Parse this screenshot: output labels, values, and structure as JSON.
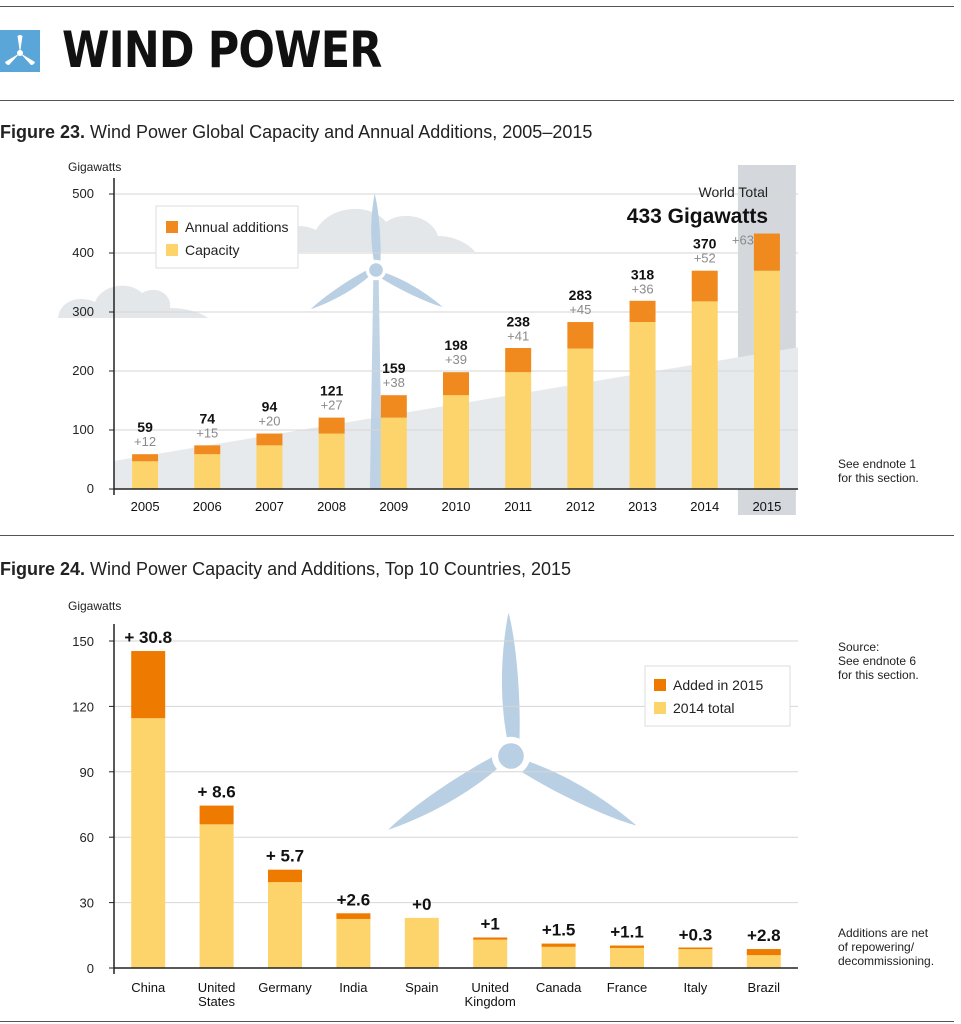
{
  "page_title": "WIND POWER",
  "colors": {
    "capacity": "#fdd36b",
    "addition": "#f08a1e",
    "addition_dark": "#ee7b00",
    "turbine": "#b9cfe3",
    "cloud": "#e3e7ea",
    "axis": "#222222",
    "grid": "#d6d6d6"
  },
  "icons": {
    "header": "wind-turbine-icon"
  },
  "fig23": {
    "title_bold": "Figure 23.",
    "title_rest": " Wind Power Global Capacity and Annual Additions, 2005–2015",
    "unit": "Gigawatts",
    "legend": [
      "Annual additions",
      "Capacity"
    ],
    "world_total_label": "World Total",
    "world_total_value": "433 Gigawatts",
    "note": "See endnote 1\nfor this section."
  },
  "fig24": {
    "title_bold": "Figure 24.",
    "title_rest": " Wind Power Capacity and Additions, Top 10 Countries, 2015",
    "unit": "Gigawatts",
    "legend": [
      "Added in 2015",
      "2014 total"
    ],
    "note_source": "Source:\nSee endnote 6\nfor this section.",
    "note_net": "Additions are net\nof repowering/\ndecommissioning."
  },
  "chart_data": [
    {
      "type": "bar",
      "stacked": true,
      "categories": [
        "2005",
        "2006",
        "2007",
        "2008",
        "2009",
        "2010",
        "2011",
        "2012",
        "2013",
        "2014",
        "2015"
      ],
      "series": [
        {
          "name": "Capacity",
          "values": [
            47,
            59,
            74,
            94,
            121,
            159,
            198,
            238,
            283,
            318,
            370
          ]
        },
        {
          "name": "Annual additions",
          "values": [
            12,
            15,
            20,
            27,
            38,
            39,
            41,
            45,
            36,
            52,
            63
          ]
        }
      ],
      "totals": [
        59,
        74,
        94,
        121,
        159,
        198,
        238,
        283,
        318,
        370,
        433
      ],
      "total_labels": [
        "59",
        "74",
        "94",
        "121",
        "159",
        "198",
        "238",
        "283",
        "318",
        "370",
        ""
      ],
      "addition_labels": [
        "+12",
        "+15",
        "+20",
        "+27",
        "+38",
        "+39",
        "+41",
        "+45",
        "+36",
        "+52",
        "+63"
      ],
      "ylim": [
        0,
        500
      ],
      "yticks": [
        0,
        100,
        200,
        300,
        400,
        500
      ],
      "ylabel": "Gigawatts",
      "grid": true,
      "highlight_category": "2015",
      "legend_position": "top-left"
    },
    {
      "type": "bar",
      "stacked": true,
      "categories": [
        "China",
        "United States",
        "Germany",
        "India",
        "Spain",
        "United Kingdom",
        "Canada",
        "France",
        "Italy",
        "Brazil"
      ],
      "category_lines": [
        [
          "China"
        ],
        [
          "United",
          "States"
        ],
        [
          "Germany"
        ],
        [
          "India"
        ],
        [
          "Spain"
        ],
        [
          "United",
          "Kingdom"
        ],
        [
          "Canada"
        ],
        [
          "France"
        ],
        [
          "Italy"
        ],
        [
          "Brazil"
        ]
      ],
      "series": [
        {
          "name": "2014 total",
          "values": [
            114.6,
            65.9,
            39.4,
            22.5,
            23.0,
            13.0,
            9.7,
            9.2,
            8.7,
            5.9
          ]
        },
        {
          "name": "Added in 2015",
          "values": [
            30.8,
            8.6,
            5.7,
            2.6,
            0,
            1,
            1.5,
            1.1,
            0.3,
            2.8
          ]
        }
      ],
      "addition_labels": [
        "+ 30.8",
        "+ 8.6",
        "+ 5.7",
        "+2.6",
        "+0",
        "+1",
        "+1.5",
        "+1.1",
        "+0.3",
        "+2.8"
      ],
      "ylim": [
        0,
        150
      ],
      "yticks": [
        0,
        30,
        60,
        90,
        120,
        150
      ],
      "ylabel": "Gigawatts",
      "grid": true,
      "legend_position": "top-right"
    }
  ]
}
